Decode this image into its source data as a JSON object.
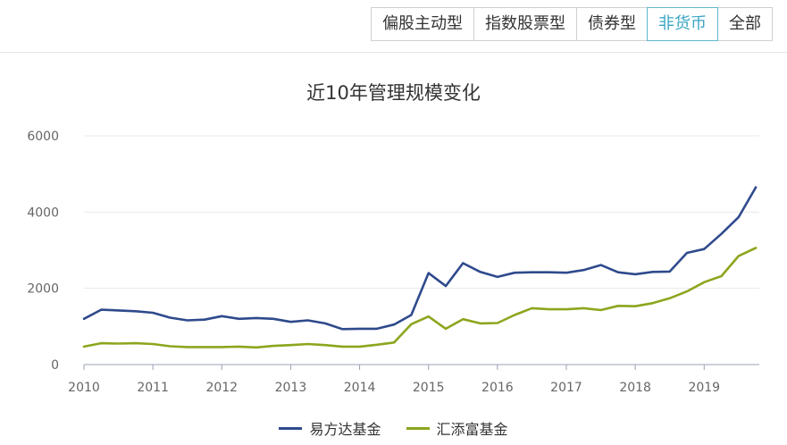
{
  "tabs": [
    {
      "label": "偏股主动型",
      "active": false
    },
    {
      "label": "指数股票型",
      "active": false
    },
    {
      "label": "债券型",
      "active": false
    },
    {
      "label": "非货币",
      "active": true
    },
    {
      "label": "全部",
      "active": false
    }
  ],
  "chart_data": {
    "type": "line",
    "title": "近10年管理规模变化",
    "xlabel": "",
    "ylabel": "",
    "xlim": [
      2010,
      2019.8
    ],
    "ylim": [
      0,
      6000
    ],
    "y_ticks": [
      0,
      2000,
      4000,
      6000
    ],
    "y_tick_labels": [
      "0",
      "2000",
      "4000",
      "6000"
    ],
    "x_ticks": [
      2010,
      2011,
      2012,
      2013,
      2014,
      2015,
      2016,
      2017,
      2018,
      2019
    ],
    "x_tick_labels": [
      "2010",
      "2011",
      "2012",
      "2013",
      "2014",
      "2015",
      "2016",
      "2017",
      "2018",
      "2019"
    ],
    "grid": "horizontal",
    "legend_position": "bottom",
    "x": [
      2010.0,
      2010.25,
      2010.5,
      2010.75,
      2011.0,
      2011.25,
      2011.5,
      2011.75,
      2012.0,
      2012.25,
      2012.5,
      2012.75,
      2013.0,
      2013.25,
      2013.5,
      2013.75,
      2014.0,
      2014.25,
      2014.5,
      2014.75,
      2015.0,
      2015.25,
      2015.5,
      2015.75,
      2016.0,
      2016.25,
      2016.5,
      2016.75,
      2017.0,
      2017.25,
      2017.5,
      2017.75,
      2018.0,
      2018.25,
      2018.5,
      2018.75,
      2019.0,
      2019.25,
      2019.5,
      2019.75
    ],
    "series": [
      {
        "name": "易方达基金",
        "color": "#2f4a8c",
        "values": [
          1200,
          1440,
          1420,
          1400,
          1360,
          1230,
          1160,
          1180,
          1270,
          1200,
          1220,
          1200,
          1120,
          1160,
          1080,
          930,
          940,
          940,
          1050,
          1300,
          2400,
          2060,
          2660,
          2430,
          2300,
          2410,
          2420,
          2420,
          2410,
          2480,
          2610,
          2420,
          2370,
          2430,
          2440,
          2930,
          3030,
          3430,
          3870,
          4650
        ]
      },
      {
        "name": "汇添富基金",
        "color": "#8ca61e",
        "values": [
          470,
          560,
          550,
          560,
          540,
          480,
          460,
          460,
          460,
          470,
          450,
          490,
          510,
          540,
          510,
          470,
          470,
          520,
          580,
          1060,
          1260,
          940,
          1190,
          1080,
          1090,
          1300,
          1480,
          1450,
          1450,
          1480,
          1430,
          1540,
          1530,
          1610,
          1740,
          1920,
          2160,
          2320,
          2850,
          3060
        ]
      }
    ]
  }
}
